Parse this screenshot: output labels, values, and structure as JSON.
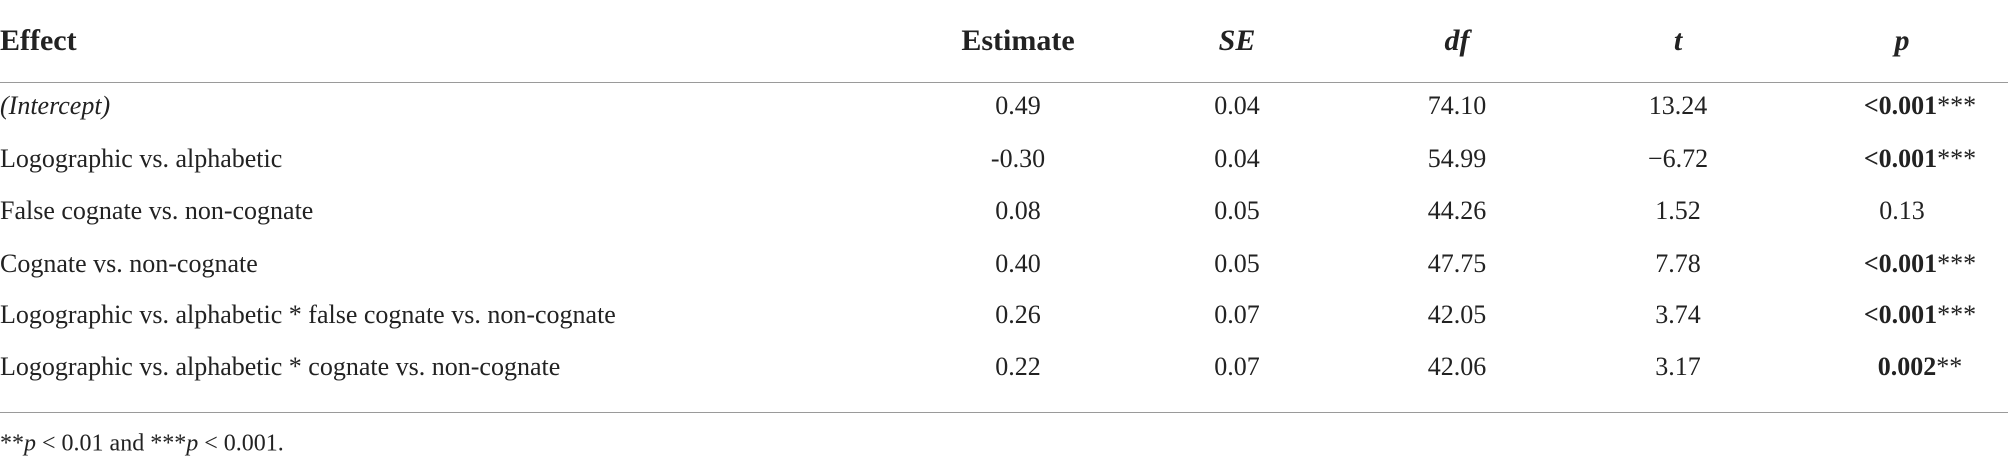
{
  "table": {
    "headers": [
      "Effect",
      "Estimate",
      "SE",
      "df",
      "t",
      "p"
    ],
    "rows": [
      {
        "effect": "(Intercept)",
        "estimate": "0.49",
        "se": "0.04",
        "df": "74.10",
        "t": "13.24",
        "p": "<0.001",
        "sig": "***"
      },
      {
        "effect": "Logographic vs. alphabetic",
        "estimate": "-0.30",
        "se": "0.04",
        "df": "54.99",
        "t": "−6.72",
        "p": "<0.001",
        "sig": "***"
      },
      {
        "effect": "False cognate vs. non-cognate",
        "estimate": "0.08",
        "se": "0.05",
        "df": "44.26",
        "t": "1.52",
        "p": "0.13"
      },
      {
        "effect": "Cognate vs. non-cognate",
        "estimate": "0.40",
        "se": "0.05",
        "df": "47.75",
        "t": "7.78",
        "p": "<0.001",
        "sig": "***"
      },
      {
        "effect": "Logographic vs. alphabetic * false cognate vs. non-cognate",
        "estimate": "0.26",
        "se": "0.07",
        "df": "42.05",
        "t": "3.74",
        "p": "<0.001",
        "sig": "***"
      },
      {
        "effect": "Logographic vs. alphabetic * cognate vs. non-cognate",
        "estimate": "0.22",
        "se": "0.07",
        "df": "42.06",
        "t": "3.17",
        "p": "0.002",
        "sig": "**"
      }
    ],
    "footnote": [
      "**",
      "p",
      " < 0.01 and ***",
      "p",
      " < 0.001."
    ]
  }
}
